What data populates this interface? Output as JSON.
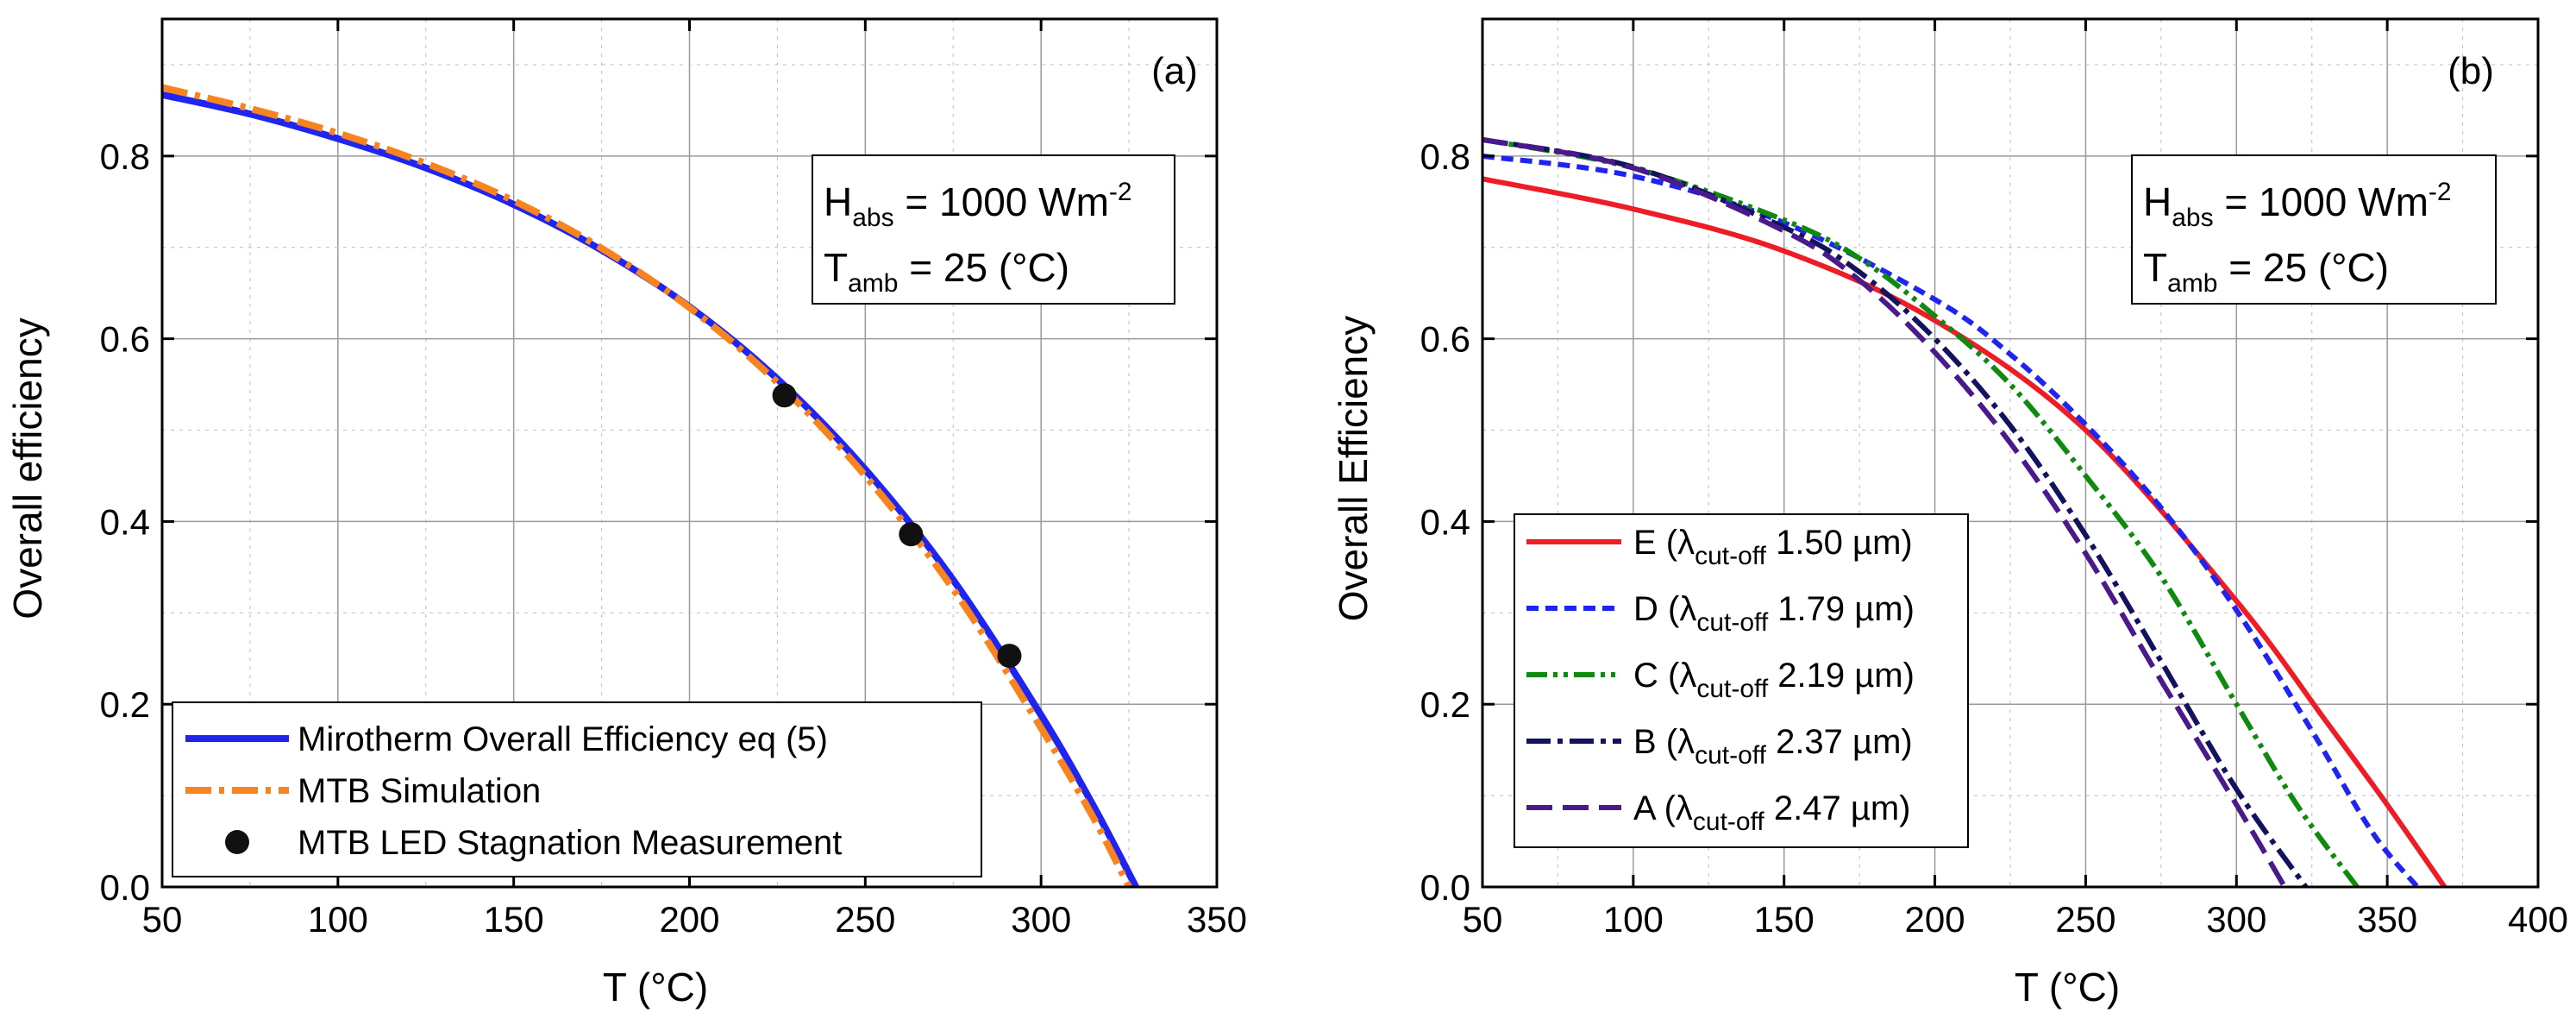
{
  "chart_data": [
    {
      "type": "line",
      "panel_label": "(a)",
      "xlabel": "T (°C)",
      "ylabel": "Overall efficiency",
      "xlim": [
        50,
        350
      ],
      "ylim": [
        0.0,
        0.95
      ],
      "xticks": [
        50,
        100,
        150,
        200,
        250,
        300,
        350
      ],
      "yticks": [
        0.0,
        0.2,
        0.4,
        0.6,
        0.8
      ],
      "ytick_labels": [
        "0.0",
        "0.2",
        "0.4",
        "0.6",
        "0.8"
      ],
      "grid": true,
      "legend_position": "bottom-left",
      "info_box": {
        "line1_main": "H",
        "line1_sub": "abs",
        "line1_rest": " = 1000 Wm",
        "line1_sup": "-2",
        "line2_main": "T",
        "line2_sub": "amb",
        "line2_rest": " = 25 (°C)"
      },
      "series": [
        {
          "name": "Mirotherm Overall Efficiency eq (5)",
          "color": "#1f24f0",
          "style": "solid",
          "x": [
            50,
            75,
            100,
            125,
            150,
            175,
            200,
            225,
            250,
            275,
            300,
            315,
            327
          ],
          "y": [
            0.867,
            0.846,
            0.819,
            0.787,
            0.747,
            0.697,
            0.635,
            0.556,
            0.457,
            0.336,
            0.188,
            0.088,
            0.0
          ]
        },
        {
          "name": "MTB Simulation",
          "color": "#f7841e",
          "style": "dashdot",
          "x": [
            50,
            75,
            100,
            125,
            150,
            175,
            200,
            225,
            250,
            275,
            300,
            315,
            325
          ],
          "y": [
            0.875,
            0.852,
            0.825,
            0.792,
            0.751,
            0.699,
            0.634,
            0.552,
            0.45,
            0.326,
            0.174,
            0.075,
            0.0
          ]
        },
        {
          "name": "MTB LED Stagnation Measurement",
          "color": "#111111",
          "style": "markers",
          "x": [
            227,
            263,
            291
          ],
          "y": [
            0.538,
            0.386,
            0.253
          ]
        }
      ]
    },
    {
      "type": "line",
      "panel_label": "(b)",
      "xlabel": "T (°C)",
      "ylabel": "Overall Efficiency",
      "xlim": [
        50,
        400
      ],
      "ylim": [
        0.0,
        0.95
      ],
      "xticks": [
        50,
        100,
        150,
        200,
        250,
        300,
        350,
        400
      ],
      "yticks": [
        0.0,
        0.2,
        0.4,
        0.6,
        0.8
      ],
      "ytick_labels": [
        "0.0",
        "0.2",
        "0.4",
        "0.6",
        "0.8"
      ],
      "grid": true,
      "legend_position": "bottom-left",
      "info_box": {
        "line1_main": "H",
        "line1_sub": "abs",
        "line1_rest": " = 1000 Wm",
        "line1_sup": "-2",
        "line2_main": "T",
        "line2_sub": "amb",
        "line2_rest": " = 25 (°C)"
      },
      "series": [
        {
          "name": "E",
          "legend_main": "E (λ",
          "legend_sub": "cut-off",
          "legend_rest": " 1.50 µm)",
          "color": "#ee1c25",
          "style": "solid",
          "x": [
            50,
            100,
            150,
            200,
            250,
            300,
            330,
            350,
            369
          ],
          "y": [
            0.775,
            0.742,
            0.696,
            0.62,
            0.5,
            0.313,
            0.18,
            0.09,
            0.0
          ]
        },
        {
          "name": "D",
          "legend_main": "D (λ",
          "legend_sub": "cut-off",
          "legend_rest": " 1.79 µm)",
          "color": "#1f24f0",
          "style": "dash",
          "x": [
            50,
            100,
            150,
            200,
            225,
            250,
            275,
            300,
            325,
            345,
            360
          ],
          "y": [
            0.8,
            0.778,
            0.727,
            0.643,
            0.583,
            0.506,
            0.415,
            0.303,
            0.171,
            0.06,
            0.0
          ]
        },
        {
          "name": "C",
          "legend_main": "C (λ",
          "legend_sub": "cut-off",
          "legend_rest": " 2.19 µm)",
          "color": "#0f8a0f",
          "style": "dashdotdot",
          "x": [
            50,
            100,
            150,
            175,
            200,
            225,
            250,
            275,
            300,
            320,
            340
          ],
          "y": [
            0.818,
            0.787,
            0.73,
            0.688,
            0.625,
            0.55,
            0.45,
            0.34,
            0.2,
            0.09,
            0.0
          ]
        },
        {
          "name": "B",
          "legend_main": "B (λ",
          "legend_sub": "cut-off",
          "legend_rest": " 2.37 µm)",
          "color": "#12125e",
          "style": "dashdot",
          "x": [
            50,
            100,
            150,
            175,
            200,
            225,
            250,
            275,
            300,
            323
          ],
          "y": [
            0.818,
            0.788,
            0.722,
            0.673,
            0.6,
            0.505,
            0.385,
            0.247,
            0.107,
            0.0
          ]
        },
        {
          "name": "A",
          "legend_main": "A (λ",
          "legend_sub": "cut-off",
          "legend_rest": " 2.47 µm)",
          "color": "#4b1a8a",
          "style": "longdash",
          "x": [
            50,
            100,
            150,
            175,
            200,
            225,
            250,
            275,
            300,
            316
          ],
          "y": [
            0.818,
            0.787,
            0.718,
            0.664,
            0.585,
            0.486,
            0.365,
            0.226,
            0.09,
            0.0
          ]
        }
      ]
    }
  ]
}
